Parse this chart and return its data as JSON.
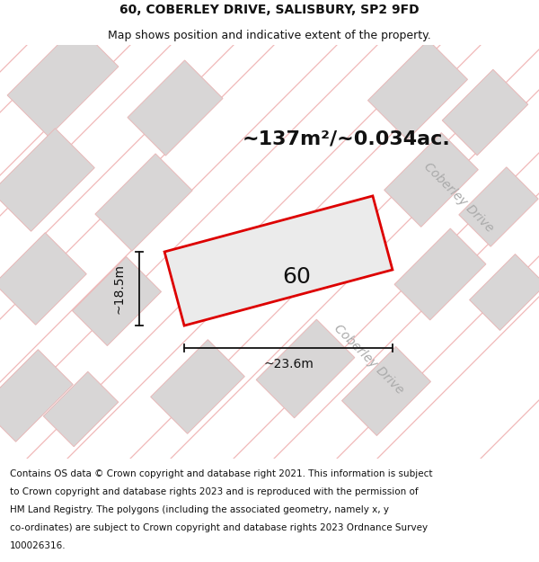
{
  "title_line1": "60, COBERLEY DRIVE, SALISBURY, SP2 9FD",
  "title_line2": "Map shows position and indicative extent of the property.",
  "area_text": "~137m²/~0.034ac.",
  "number_text": "60",
  "dim_width": "~23.6m",
  "dim_height": "~18.5m",
  "road_label": "Coberley Drive",
  "footer_lines": [
    "Contains OS data © Crown copyright and database right 2021. This information is subject",
    "to Crown copyright and database rights 2023 and is reproduced with the permission of",
    "HM Land Registry. The polygons (including the associated geometry, namely x, y",
    "co-ordinates) are subject to Crown copyright and database rights 2023 Ordnance Survey",
    "100026316."
  ],
  "map_bg": "#f2f0f0",
  "plot_fill": "#ebebeb",
  "plot_edge": "#dd0000",
  "neighbor_fill": "#d8d6d6",
  "neighbor_edge": "#e8b8b8",
  "road_line_color": "#f0b8b8",
  "title1_fontsize": 10,
  "title2_fontsize": 9,
  "area_fontsize": 16,
  "number_fontsize": 18,
  "dim_fontsize": 10,
  "road_fontsize": 10,
  "footer_fontsize": 7.5
}
